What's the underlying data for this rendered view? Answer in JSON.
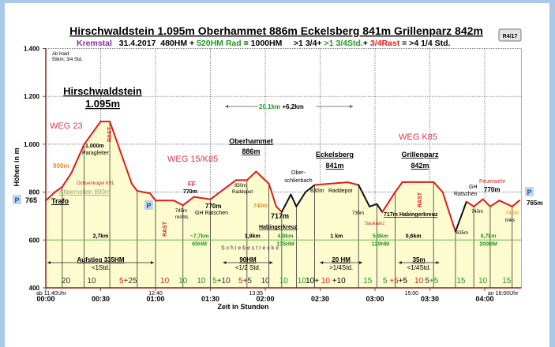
{
  "chart_data": {
    "type": "area",
    "title": "Hirschwaldstein 1.095m Oberhammet 886m Eckelsberg 841m Grillenparz 842m",
    "subtitle_parts": [
      {
        "text": "Kremstal",
        "color": "#8a2aa8"
      },
      {
        "text": "   31.4.2017  480HM + ",
        "color": "#000000"
      },
      {
        "text": "520HM Rad",
        "color": "#1f9a1f"
      },
      {
        "text": " = 1000HM     >1 3/4+ ",
        "color": "#000000"
      },
      {
        "text": ">1 3/4Std.",
        "color": "#1f9a1f"
      },
      {
        "text": "+ ",
        "color": "#000000"
      },
      {
        "text": "3/4Rast",
        "color": "#e02020"
      },
      {
        "text": " = >4 1/4 Std.",
        "color": "#000000"
      }
    ],
    "xlabel": "Zeit in Stunden",
    "ylabel": "Höhen in m",
    "ylim": [
      400,
      1400
    ],
    "xlim": [
      "0:00",
      "4:20"
    ],
    "yticks": [
      "400",
      "600",
      "800",
      "1.000",
      "1.200",
      "1.400"
    ],
    "ytick_values": [
      400,
      600,
      800,
      1000,
      1200,
      1400
    ],
    "xticks": [
      "00:00",
      "00:30",
      "01:00",
      "01:30",
      "02:00",
      "02:30",
      "03:00",
      "03:30",
      "04:00"
    ],
    "clock_labels": [
      {
        "at": "0:00",
        "text": "ab 11:40Uhr"
      },
      {
        "at": "1:00",
        "text": "12:40"
      },
      {
        "at": "1:55",
        "text": "13:35"
      },
      {
        "at": "3:20",
        "text": "15:00"
      },
      {
        "at": "4:10",
        "text": "an 16:00Uhr"
      }
    ],
    "grid": true,
    "fill_color": "#fdfccf",
    "line_color": "#e01a1a",
    "profile": [
      [
        "0:00",
        765
      ],
      [
        "0:05",
        800
      ],
      [
        "0:09",
        822
      ],
      [
        "0:14",
        880
      ],
      [
        "0:21",
        1000
      ],
      [
        "0:30",
        1095
      ],
      [
        "0:35",
        1095
      ],
      [
        "0:47",
        835
      ],
      [
        "0:50",
        805
      ],
      [
        "0:57",
        795
      ],
      [
        "1:00",
        765
      ],
      [
        "1:10",
        765
      ],
      [
        "1:15",
        745
      ],
      [
        "1:21",
        780
      ],
      [
        "1:30",
        770
      ],
      [
        "1:44",
        850
      ],
      [
        "1:50",
        850
      ],
      [
        "1:55",
        886
      ],
      [
        "2:02",
        835
      ],
      [
        "2:06",
        740
      ],
      [
        "2:09",
        717
      ],
      [
        "2:14",
        790
      ],
      [
        "2:17",
        740
      ],
      [
        "2:22",
        800
      ],
      [
        "2:27",
        830
      ],
      [
        "2:45",
        841
      ],
      [
        "2:51",
        830
      ],
      [
        "2:57",
        740
      ],
      [
        "3:01",
        750
      ],
      [
        "3:04",
        717
      ],
      [
        "3:11",
        800
      ],
      [
        "3:15",
        842
      ],
      [
        "3:32",
        842
      ],
      [
        "3:37",
        800
      ],
      [
        "3:44",
        635
      ],
      [
        "3:50",
        760
      ],
      [
        "3:54",
        740
      ],
      [
        "3:59",
        770
      ],
      [
        "4:03",
        740
      ],
      [
        "4:08",
        765
      ],
      [
        "4:15",
        740
      ],
      [
        "4:19",
        765
      ]
    ],
    "black_ranges": [
      [
        "2:09",
        "2:27"
      ],
      [
        "2:51",
        "3:04"
      ],
      [
        "3:40",
        "3:50"
      ]
    ],
    "segment_line_elevation": 600,
    "segment_labels": [
      {
        "at": "0:30",
        "lines": [
          "2,7km"
        ],
        "color": "#000000"
      },
      {
        "at": "1:24",
        "lines": [
          "~7,7km",
          "65HM"
        ],
        "color": "#1f9a1f"
      },
      {
        "at": "1:53",
        "lines": [
          "1,9km"
        ],
        "color": "#000000"
      },
      {
        "at": "2:11",
        "lines": [
          "4,8km",
          "135HM"
        ],
        "color": "#1f9a1f"
      },
      {
        "at": "2:39",
        "lines": [
          "1 km"
        ],
        "color": "#000000"
      },
      {
        "at": "3:03",
        "lines": [
          "5,9km",
          "120HM"
        ],
        "color": "#1f9a1f"
      },
      {
        "at": "3:21",
        "lines": [
          "0,6km"
        ],
        "color": "#000000"
      },
      {
        "at": "4:02",
        "lines": [
          "6,7km",
          "200HM"
        ],
        "color": "#1f9a1f"
      }
    ],
    "schiebestrecke": "S c h i e b e s t r e c k e",
    "duration_arrows": [
      {
        "from": "0:00",
        "to": "1:00",
        "lines": [
          "Aufstieg 335HM",
          "<1Std."
        ]
      },
      {
        "from": "1:36",
        "to": "2:05",
        "lines": [
          "90HM",
          "<1/2 Std."
        ]
      },
      {
        "from": "2:29",
        "to": "2:54",
        "lines": [
          "20 HM",
          ">1/4Std."
        ]
      },
      {
        "from": "3:12",
        "to": "3:36",
        "lines": [
          "35m",
          "<1/4Std."
        ]
      }
    ],
    "minutes_row": [
      {
        "at": "0:11",
        "parts": [
          [
            "20",
            "#333333"
          ]
        ]
      },
      {
        "at": "0:25",
        "parts": [
          [
            "10",
            "#333333"
          ]
        ]
      },
      {
        "at": "0:45",
        "parts": [
          [
            "5",
            "#e02020"
          ],
          [
            "+25",
            "#333333"
          ]
        ]
      },
      {
        "at": "1:05",
        "parts": [
          [
            "10",
            "#e02020"
          ]
        ]
      },
      {
        "at": "1:15",
        "parts": [
          [
            "10",
            "#1f9a1f"
          ]
        ]
      },
      {
        "at": "1:25",
        "parts": [
          [
            "10",
            "#1f9a1f"
          ]
        ]
      },
      {
        "at": "1:36",
        "parts": [
          [
            "5",
            "#1f9a1f"
          ],
          [
            "+10",
            "#333333"
          ]
        ]
      },
      {
        "at": "1:49",
        "parts": [
          [
            "5",
            "#e02020"
          ],
          [
            "+5",
            "#333333"
          ]
        ]
      },
      {
        "at": "2:00",
        "parts": [
          [
            "10",
            "#333333"
          ]
        ]
      },
      {
        "at": "2:10",
        "parts": [
          [
            "10",
            "#1f9a1f"
          ]
        ]
      },
      {
        "at": "2:20",
        "parts": [
          [
            "10",
            "#1f9a1f"
          ]
        ]
      },
      {
        "at": "2:33",
        "parts": [
          [
            "10+ ",
            "#000000"
          ],
          [
            "10",
            "#e02020"
          ],
          [
            " +10",
            "#000000"
          ]
        ]
      },
      {
        "at": "2:56",
        "parts": [
          [
            "15",
            "#1f9a1f"
          ]
        ]
      },
      {
        "at": "3:11",
        "parts": [
          [
            "5 ",
            "#1f9a1f"
          ],
          [
            "+5",
            "#e02020"
          ],
          [
            "+5",
            "#000000"
          ]
        ]
      },
      {
        "at": "3:24",
        "parts": [
          [
            "10",
            "#e02020"
          ]
        ]
      },
      {
        "at": "3:31",
        "parts": [
          [
            "5",
            "#333333"
          ],
          [
            "+5",
            "#1f9a1f"
          ]
        ]
      },
      {
        "at": "3:47",
        "parts": [
          [
            "15",
            "#1f9a1f"
          ]
        ]
      },
      {
        "at": "3:59",
        "parts": [
          [
            "10",
            "#1f9a1f"
          ]
        ]
      },
      {
        "at": "4:12",
        "parts": [
          [
            "15",
            "#1f9a1f"
          ]
        ]
      }
    ]
  },
  "badge": "R4/17",
  "labels": {
    "ab_haid_1": "Ab Haid:",
    "ab_haid_2": "59km; 3/4 Std.",
    "hirsch_name": "Hirschwaldstein",
    "hirsch_alt": "1.095m",
    "weg23": "WEG 23",
    "m900": "900m",
    "m1000": "1.000m",
    "paragleiter": "Paragleiter",
    "rast": "RAST",
    "ochsenkogel": "Ochsenkogel K91",
    "altpernstein": "Altpernstein 890m",
    "p": "P",
    "start_alt": "765",
    "trafo": "Trafo",
    "weg15": "WEG 15/K85",
    "ff": "FF",
    "m770a": "770m",
    "m745": "745m",
    "rechts": "rechts",
    "m770b": "770m",
    "gh_ratschen": "GH Ratschen",
    "m850": "850m",
    "raddepot": "Raddepot",
    "ober_name": "Oberhammet",
    "ober_alt": "886m",
    "m740a": "740m",
    "m717": "717m",
    "habingerkreuz": "Habingerkreuz",
    "km_total_a": "20,1km",
    "km_total_b": " +6,2km",
    "ober_schl_1": "Ober-",
    "ober_schl_2": "schlierbach",
    "eck_name": "Eckelsberg",
    "eck_alt": "841m",
    "m830": "830m",
    "raddepot2": "Raddepot",
    "m735": "735m",
    "saukranz": "Saukranz",
    "hab2": "717m Habingerkreuz",
    "wegk85": "WEG K85",
    "grill_name": "Grillenparz",
    "grill_alt": "842m",
    "m635": "635m",
    "gh": "GH",
    "ratschen": "Ratschen",
    "feuerwehr": "Feuerwehr",
    "m770c": "770m",
    "m740b": "740m",
    "m740c": "740m",
    "links": "links",
    "end_alt": "765m"
  }
}
